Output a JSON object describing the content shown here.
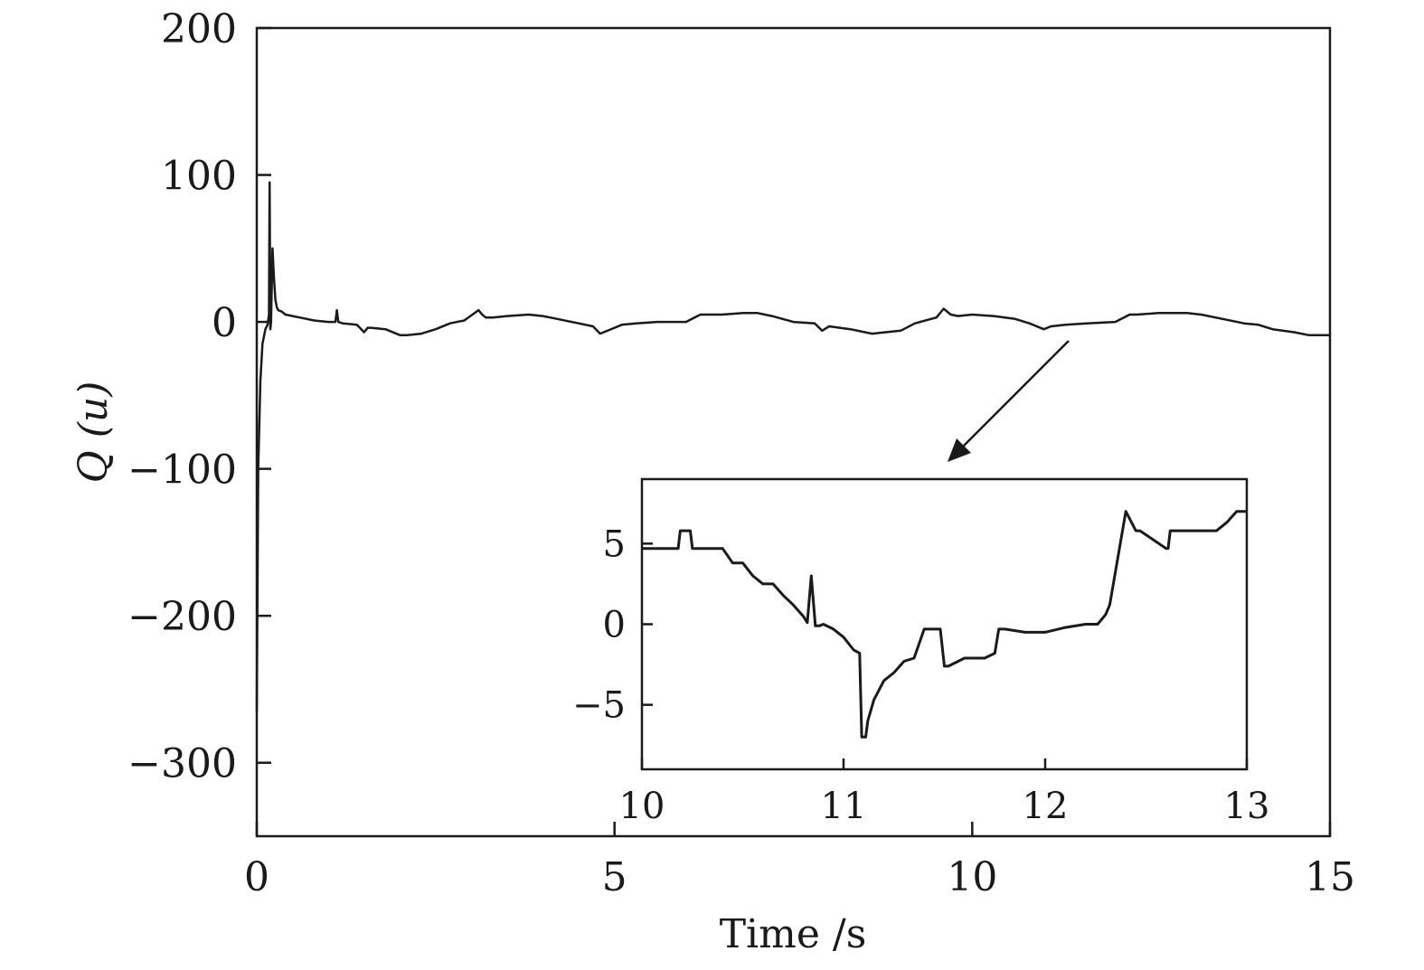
{
  "chart_data": [
    {
      "type": "line",
      "title": "",
      "xlabel": "Time /s",
      "ylabel": "Q (u)",
      "xlim": [
        0,
        15
      ],
      "ylim": [
        -350,
        200
      ],
      "xticks": [
        0,
        5,
        10,
        15
      ],
      "yticks": [
        200,
        100,
        0,
        -100,
        -200,
        -300
      ],
      "xtick_labels": [
        "0",
        "5",
        "10",
        "15"
      ],
      "ytick_labels": [
        "200",
        "100",
        "0",
        "−100",
        "−200",
        "−300"
      ],
      "grid": false,
      "series": [
        {
          "color": "#1a1a1a",
          "x": [
            0.0,
            0.02,
            0.05,
            0.08,
            0.12,
            0.15,
            0.17,
            0.18,
            0.19,
            0.2,
            0.22,
            0.24,
            0.26,
            0.28,
            0.3,
            0.35,
            0.4,
            0.5,
            0.6,
            0.8,
            1.0,
            1.1,
            1.12,
            1.14,
            1.2,
            1.4,
            1.5,
            1.55,
            1.6,
            1.8,
            2.0,
            2.1,
            2.3,
            2.5,
            2.7,
            2.9,
            3.1,
            3.15,
            3.2,
            3.3,
            3.5,
            3.8,
            4.0,
            4.2,
            4.5,
            4.7,
            4.8,
            5.0,
            5.1,
            5.3,
            5.6,
            6.0,
            6.2,
            6.5,
            6.8,
            7.0,
            7.2,
            7.5,
            7.8,
            7.9,
            8.0,
            8.3,
            8.6,
            9.0,
            9.2,
            9.5,
            9.6,
            9.7,
            9.8,
            10.0,
            10.3,
            10.6,
            10.8,
            11.0,
            11.1,
            11.3,
            11.6,
            12.0,
            12.2,
            12.3,
            12.6,
            13.0,
            13.2,
            13.5,
            13.8,
            14.0,
            14.2,
            14.5,
            14.7,
            15.0
          ],
          "y": [
            -265,
            -100,
            -40,
            -15,
            -5,
            -2,
            5,
            95,
            -5,
            0,
            50,
            30,
            15,
            10,
            8,
            7,
            5,
            4,
            3,
            1,
            0,
            0,
            8,
            0,
            -1,
            -2,
            -7,
            -4,
            -4,
            -5,
            -9,
            -9,
            -8,
            -5,
            -1,
            1,
            8,
            5,
            3,
            3,
            4,
            5,
            4,
            2,
            -1,
            -3,
            -8,
            -4,
            -2,
            -1,
            0,
            0,
            5,
            5,
            6,
            6,
            4,
            0,
            -1,
            -6,
            -3,
            -5,
            -8,
            -6,
            -1,
            3,
            9,
            5,
            4,
            5,
            4,
            2,
            -1,
            -5,
            -3,
            -2,
            -1,
            0,
            5,
            5,
            6,
            6,
            5,
            2,
            -1,
            -2,
            -5,
            -7,
            -9,
            -9
          ]
        }
      ]
    },
    {
      "type": "line",
      "title": "",
      "xlabel": "",
      "ylabel": "",
      "xlim": [
        10,
        13
      ],
      "ylim": [
        -9,
        9
      ],
      "xticks": [
        10,
        11,
        12,
        13
      ],
      "yticks": [
        5,
        0,
        -5
      ],
      "xtick_labels": [
        "10",
        "11",
        "12",
        "13"
      ],
      "ytick_labels": [
        "5",
        "0",
        "−5"
      ],
      "grid": false,
      "series": [
        {
          "color": "#1a1a1a",
          "x": [
            10.0,
            10.18,
            10.19,
            10.24,
            10.25,
            10.4,
            10.45,
            10.5,
            10.55,
            10.6,
            10.65,
            10.7,
            10.75,
            10.8,
            10.82,
            10.84,
            10.86,
            10.88,
            10.9,
            10.95,
            11.0,
            11.05,
            11.08,
            11.09,
            11.1,
            11.11,
            11.12,
            11.15,
            11.2,
            11.25,
            11.3,
            11.35,
            11.4,
            11.42,
            11.48,
            11.5,
            11.52,
            11.6,
            11.7,
            11.75,
            11.77,
            11.8,
            11.9,
            12.0,
            12.1,
            12.2,
            12.26,
            12.3,
            12.32,
            12.4,
            12.45,
            12.47,
            12.6,
            12.61,
            12.62,
            12.63,
            12.85,
            12.9,
            12.95,
            13.0
          ],
          "y": [
            4.7,
            4.7,
            5.8,
            5.8,
            4.7,
            4.7,
            3.8,
            3.8,
            3.0,
            2.5,
            2.5,
            1.8,
            1.2,
            0.5,
            0.1,
            3.0,
            -0.1,
            -0.1,
            0.0,
            -0.3,
            -0.8,
            -1.6,
            -1.8,
            -7.0,
            -7.0,
            -7.0,
            -6.0,
            -4.7,
            -3.5,
            -3.0,
            -2.3,
            -2.1,
            -0.3,
            -0.3,
            -0.3,
            -2.6,
            -2.6,
            -2.1,
            -2.1,
            -1.8,
            -0.3,
            -0.3,
            -0.5,
            -0.5,
            -0.2,
            0.0,
            0.0,
            0.6,
            1.2,
            7.0,
            5.8,
            5.8,
            4.7,
            4.7,
            5.8,
            5.8,
            5.8,
            6.3,
            7.0,
            7.0
          ]
        }
      ]
    }
  ],
  "colors": {
    "line": "#1a1a1a",
    "background": "#ffffff"
  }
}
